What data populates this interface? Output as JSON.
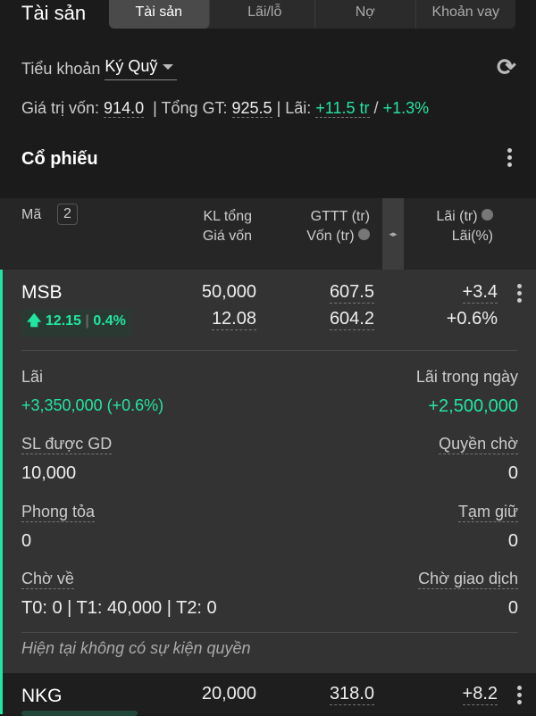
{
  "title": "Tài sản",
  "tabs": [
    {
      "label": "Tài sản",
      "active": true
    },
    {
      "label": "Lãi/lỗ"
    },
    {
      "label": "Nợ"
    },
    {
      "label": "Khoản vay"
    }
  ],
  "account": {
    "label": "Tiểu khoản",
    "value": "Ký Quỹ"
  },
  "summary": {
    "von_label": "Giá trị vốn:",
    "von": "914.0",
    "tong_label": "| Tổng GT:",
    "tong": "925.5",
    "lai_label": "| Lãi:",
    "lai": "+11.5 tr",
    "sep": "/",
    "lai_pct": "+1.3%"
  },
  "section_title": "Cổ phiếu",
  "header": {
    "ma": "Mã",
    "count": "2",
    "kl": "KL tổng",
    "gia_von": "Giá vốn",
    "gttt": "GTTT (tr)",
    "von": "Vốn (tr)",
    "lai": "Lãi (tr)",
    "lai_pct": "Lãi(%)"
  },
  "stocks": [
    {
      "code": "MSB",
      "price": "12.15",
      "change": "0.4%",
      "kl": "50,000",
      "gia_von": "12.08",
      "gttt": "607.5",
      "von": "604.2",
      "lai": "+3.4",
      "lai_pct": "+0.6%",
      "details": {
        "lai_label": "Lãi",
        "lai_value": "+3,350,000 (+0.6%)",
        "lai_ngay_label": "Lãi trong ngày",
        "lai_ngay_value": "+2,500,000",
        "sl_label": "SL được GD",
        "sl_value": "10,000",
        "quyen_label": "Quyền chờ",
        "quyen_value": "0",
        "phong_label": "Phong tỏa",
        "phong_value": "0",
        "tam_label": "Tạm giữ",
        "tam_value": "0",
        "cho_ve_label": "Chờ về",
        "cho_ve_value": "T0: 0 | T1: 40,000 | T2: 0",
        "cho_gd_label": "Chờ giao dịch",
        "cho_gd_value": "0",
        "note": "Hiện tại không có sự kiện quyền"
      }
    },
    {
      "code": "NKG",
      "kl": "20,000",
      "gttt": "318.0",
      "lai": "+8.2"
    }
  ],
  "colors": {
    "accent": "#21e6a1"
  }
}
